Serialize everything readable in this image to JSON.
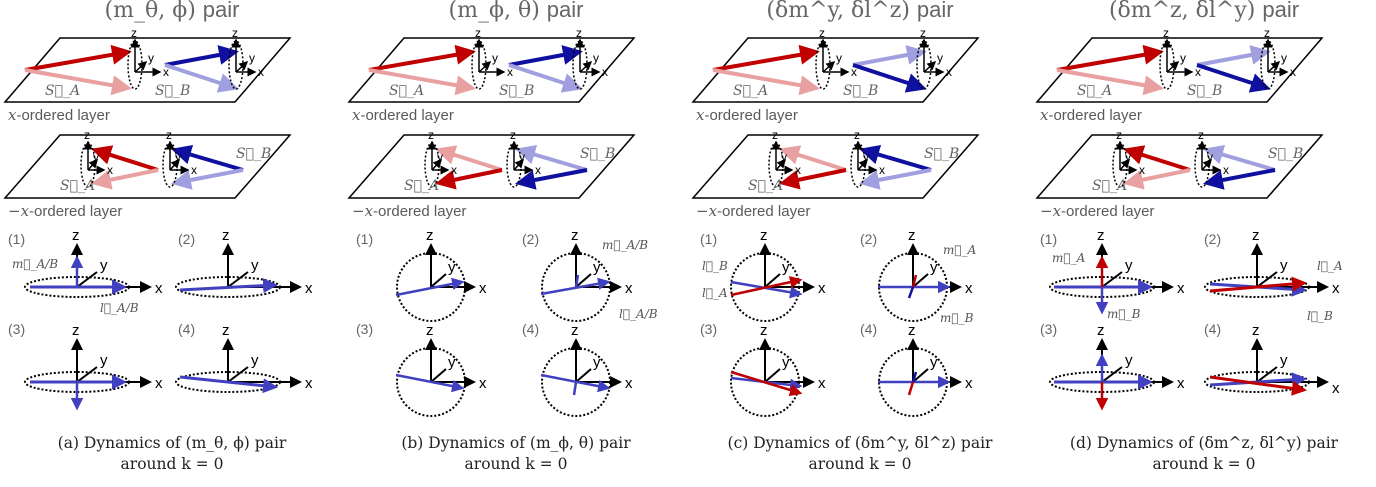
{
  "panels": [
    {
      "id": "a",
      "title": "(m_θ, ϕ)",
      "title_suffix": "pair",
      "layer1_label": "-ordered layer",
      "layer1_var": "x",
      "layer2_label": "-ordered layer",
      "layer2_var": "−x",
      "sub_numbers": [
        "(1)",
        "(2)",
        "(3)",
        "(4)"
      ],
      "caption_line1": "(a) Dynamics of (m_θ, ϕ) pair",
      "caption_line2": "around k = 0",
      "annotations": [
        "m⃗_A/B",
        "l⃗_A/B"
      ]
    },
    {
      "id": "b",
      "title": "(m_ϕ, θ)",
      "title_suffix": "pair",
      "layer1_label": "-ordered layer",
      "layer1_var": "x",
      "layer2_label": "-ordered layer",
      "layer2_var": "−x",
      "sub_numbers": [
        "(1)",
        "(2)",
        "(3)",
        "(4)"
      ],
      "caption_line1": "(b) Dynamics of (m_ϕ, θ) pair",
      "caption_line2": "around k = 0",
      "annotations": [
        "m⃗_A/B",
        "l⃗_A/B"
      ]
    },
    {
      "id": "c",
      "title": "(δm^y, δl^z)",
      "title_suffix": "pair",
      "layer1_label": "-ordered layer",
      "layer1_var": "x",
      "layer2_label": "-ordered layer",
      "layer2_var": "−x",
      "sub_numbers": [
        "(1)",
        "(2)",
        "(3)",
        "(4)"
      ],
      "caption_line1": "(c) Dynamics of (δm^y, δl^z) pair",
      "caption_line2": "around k = 0",
      "annotations": [
        "l⃗_B",
        "l⃗_A",
        "m⃗_A",
        "m⃗_B"
      ]
    },
    {
      "id": "d",
      "title": "(δm^z, δl^y)",
      "title_suffix": "pair",
      "layer1_label": "-ordered layer",
      "layer1_var": "x",
      "layer2_label": "-ordered layer",
      "layer2_var": "−x",
      "sub_numbers": [
        "(1)",
        "(2)",
        "(3)",
        "(4)"
      ],
      "caption_line1": "(d) Dynamics of (δm^z, δl^y) pair",
      "caption_line2": "around k = 0",
      "annotations": [
        "m⃗_A",
        "l⃗_A",
        "m⃗_B",
        "l⃗_B"
      ]
    }
  ],
  "axis_labels": {
    "x": "x",
    "y": "y",
    "z": "z"
  },
  "spin_labels": {
    "a": "S⃗_A",
    "b": "S⃗_B"
  },
  "colors": {
    "red": "#c00000",
    "blue": "#1010a0",
    "light_red": "#e8a0a0",
    "light_blue": "#a0a0e0",
    "mid_blue": "#4040c0",
    "gray": "#666666"
  }
}
